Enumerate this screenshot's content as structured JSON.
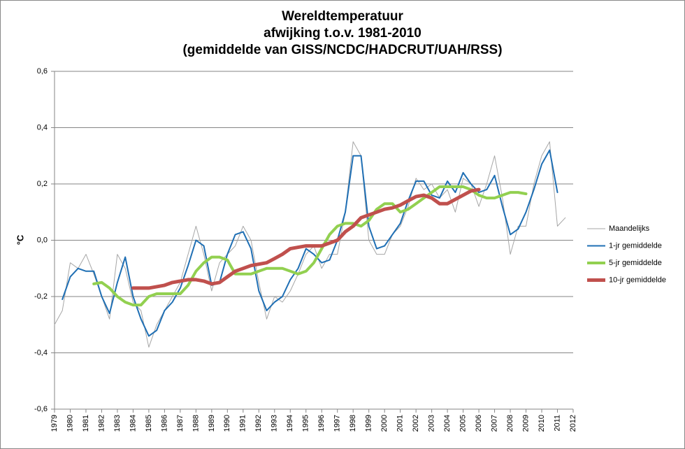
{
  "chart_data": {
    "type": "line",
    "title": [
      "Wereldtemperatuur",
      "afwijking t.o.v. 1981-2010",
      "(gemiddelde van GISS/NCDC/HADCRUT/UAH/RSS)"
    ],
    "ylabel": "°C",
    "x": [
      1979,
      1979.5,
      1980,
      1980.5,
      1981,
      1981.5,
      1982,
      1982.5,
      1983,
      1983.5,
      1984,
      1984.5,
      1985,
      1985.5,
      1986,
      1986.5,
      1987,
      1987.5,
      1988,
      1988.5,
      1989,
      1989.5,
      1990,
      1990.5,
      1991,
      1991.5,
      1992,
      1992.5,
      1993,
      1993.5,
      1994,
      1994.5,
      1995,
      1995.5,
      1996,
      1996.5,
      1997,
      1997.5,
      1998,
      1998.5,
      1999,
      1999.5,
      2000,
      2000.5,
      2001,
      2001.5,
      2002,
      2002.5,
      2003,
      2003.5,
      2004,
      2004.5,
      2005,
      2005.5,
      2006,
      2006.5,
      2007,
      2007.5,
      2008,
      2008.5,
      2009,
      2009.5,
      2010,
      2010.5,
      2011,
      2011.5
    ],
    "xlim": [
      1979,
      2012
    ],
    "xticks": [
      1979,
      1980,
      1981,
      1982,
      1983,
      1984,
      1985,
      1986,
      1987,
      1988,
      1989,
      1990,
      1991,
      1992,
      1993,
      1994,
      1995,
      1996,
      1997,
      1998,
      1999,
      2000,
      2001,
      2002,
      2003,
      2004,
      2005,
      2006,
      2007,
      2008,
      2009,
      2010,
      2011,
      2012
    ],
    "ylim": [
      -0.6,
      0.6
    ],
    "yticks": [
      {
        "value": -0.6,
        "label": "-0,6"
      },
      {
        "value": -0.4,
        "label": "-0,4"
      },
      {
        "value": -0.2,
        "label": "-0,2"
      },
      {
        "value": 0,
        "label": "0,0"
      },
      {
        "value": 0.2,
        "label": "0,2"
      },
      {
        "value": 0.4,
        "label": "0,4"
      },
      {
        "value": 0.6,
        "label": "0,6"
      }
    ],
    "grid": true,
    "legend": "right",
    "series": [
      {
        "name": "Maandelijks",
        "color": "#a6a6a6",
        "width": 1,
        "values": [
          -0.3,
          -0.25,
          -0.08,
          -0.1,
          -0.05,
          -0.12,
          -0.2,
          -0.28,
          -0.05,
          -0.1,
          -0.22,
          -0.25,
          -0.38,
          -0.3,
          -0.25,
          -0.2,
          -0.15,
          -0.05,
          0.05,
          -0.05,
          -0.18,
          -0.08,
          -0.05,
          -0.02,
          0.05,
          0.0,
          -0.15,
          -0.28,
          -0.2,
          -0.22,
          -0.18,
          -0.12,
          -0.05,
          -0.02,
          -0.1,
          -0.05,
          -0.05,
          0.1,
          0.35,
          0.3,
          0.0,
          -0.05,
          -0.05,
          0.02,
          0.05,
          0.12,
          0.22,
          0.18,
          0.2,
          0.15,
          0.18,
          0.1,
          0.22,
          0.2,
          0.12,
          0.2,
          0.3,
          0.15,
          -0.05,
          0.05,
          0.05,
          0.2,
          0.3,
          0.35,
          0.05,
          0.08
        ]
      },
      {
        "name": "1-jr gemiddelde",
        "color": "#1f6fb4",
        "width": 2,
        "values": [
          null,
          -0.21,
          -0.13,
          -0.1,
          -0.11,
          -0.11,
          -0.2,
          -0.26,
          -0.15,
          -0.06,
          -0.2,
          -0.28,
          -0.34,
          -0.32,
          -0.25,
          -0.22,
          -0.17,
          -0.09,
          0.0,
          -0.02,
          -0.16,
          -0.15,
          -0.05,
          0.02,
          0.03,
          -0.03,
          -0.18,
          -0.25,
          -0.22,
          -0.2,
          -0.14,
          -0.1,
          -0.03,
          -0.05,
          -0.08,
          -0.07,
          0.0,
          0.1,
          0.3,
          0.3,
          0.05,
          -0.03,
          -0.02,
          0.02,
          0.06,
          0.14,
          0.21,
          0.21,
          0.16,
          0.15,
          0.21,
          0.17,
          0.24,
          0.2,
          0.17,
          0.18,
          0.23,
          0.12,
          0.02,
          0.04,
          0.1,
          0.18,
          0.27,
          0.32,
          0.17,
          null
        ]
      },
      {
        "name": "5-jr gemiddelde",
        "color": "#92d050",
        "width": 4,
        "values": [
          null,
          null,
          null,
          null,
          null,
          -0.155,
          -0.15,
          -0.17,
          -0.2,
          -0.22,
          -0.23,
          -0.23,
          -0.2,
          -0.19,
          -0.19,
          -0.19,
          -0.19,
          -0.16,
          -0.11,
          -0.08,
          -0.06,
          -0.06,
          -0.07,
          -0.12,
          -0.12,
          -0.12,
          -0.11,
          -0.1,
          -0.1,
          -0.1,
          -0.11,
          -0.12,
          -0.11,
          -0.08,
          -0.03,
          0.02,
          0.05,
          0.06,
          0.06,
          0.05,
          0.07,
          0.11,
          0.13,
          0.13,
          0.1,
          0.11,
          0.13,
          0.15,
          0.17,
          0.19,
          0.19,
          0.19,
          0.19,
          0.18,
          0.16,
          0.15,
          0.15,
          0.16,
          0.17,
          0.17,
          0.165,
          null,
          null,
          null,
          null,
          null
        ]
      },
      {
        "name": "10-jr gemiddelde",
        "color": "#c0504d",
        "width": 5,
        "values": [
          null,
          null,
          null,
          null,
          null,
          null,
          null,
          null,
          null,
          null,
          -0.17,
          -0.17,
          -0.17,
          -0.165,
          -0.16,
          -0.15,
          -0.145,
          -0.14,
          -0.14,
          -0.145,
          -0.155,
          -0.15,
          -0.13,
          -0.11,
          -0.1,
          -0.09,
          -0.085,
          -0.08,
          -0.065,
          -0.05,
          -0.03,
          -0.025,
          -0.02,
          -0.02,
          -0.02,
          -0.01,
          0.0,
          0.03,
          0.05,
          0.08,
          0.09,
          0.1,
          0.11,
          0.115,
          0.125,
          0.14,
          0.155,
          0.16,
          0.15,
          0.13,
          0.13,
          0.145,
          0.16,
          0.175,
          0.18,
          null,
          null,
          null,
          null,
          null,
          null,
          null,
          null,
          null,
          null,
          null
        ]
      }
    ]
  }
}
